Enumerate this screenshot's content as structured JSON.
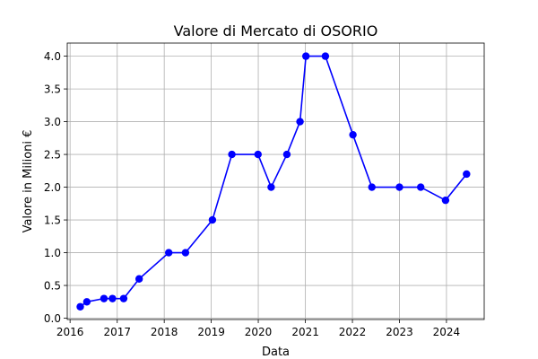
{
  "chart_data": {
    "type": "line",
    "title": "Valore di Mercato di OSORIO",
    "xlabel": "Data",
    "ylabel": "Valore in Milioni €",
    "x_is_date": true,
    "xlim": [
      "2015-12-10",
      "2024-10-20"
    ],
    "ylim": [
      -0.02,
      4.2
    ],
    "x_ticks": [
      "2016",
      "2017",
      "2018",
      "2019",
      "2020",
      "2021",
      "2022",
      "2023",
      "2024"
    ],
    "y_ticks": [
      "0.0",
      "0.5",
      "1.0",
      "1.5",
      "2.0",
      "2.5",
      "3.0",
      "3.5",
      "4.0"
    ],
    "y_tick_values": [
      0,
      0.5,
      1.0,
      1.5,
      2.0,
      2.5,
      3.0,
      3.5,
      4.0
    ],
    "grid": true,
    "series": [
      {
        "color": "#0000ff",
        "marker": "circle",
        "points": [
          {
            "x": "2016-03-20",
            "y": 0.175
          },
          {
            "x": "2016-05-10",
            "y": 0.25
          },
          {
            "x": "2016-09-20",
            "y": 0.3
          },
          {
            "x": "2016-11-25",
            "y": 0.3
          },
          {
            "x": "2017-02-20",
            "y": 0.3
          },
          {
            "x": "2017-06-20",
            "y": 0.6
          },
          {
            "x": "2018-02-05",
            "y": 1.0
          },
          {
            "x": "2018-06-15",
            "y": 1.0
          },
          {
            "x": "2019-01-10",
            "y": 1.5
          },
          {
            "x": "2019-06-10",
            "y": 2.5
          },
          {
            "x": "2019-12-30",
            "y": 2.5
          },
          {
            "x": "2020-04-10",
            "y": 2.0
          },
          {
            "x": "2020-08-10",
            "y": 2.5
          },
          {
            "x": "2020-11-20",
            "y": 3.0
          },
          {
            "x": "2021-01-05",
            "y": 4.0
          },
          {
            "x": "2021-06-05",
            "y": 4.0
          },
          {
            "x": "2022-01-05",
            "y": 2.8
          },
          {
            "x": "2022-06-01",
            "y": 2.0
          },
          {
            "x": "2023-01-01",
            "y": 2.0
          },
          {
            "x": "2023-06-15",
            "y": 2.0
          },
          {
            "x": "2023-12-25",
            "y": 1.8
          },
          {
            "x": "2024-06-05",
            "y": 2.2
          }
        ]
      }
    ]
  }
}
